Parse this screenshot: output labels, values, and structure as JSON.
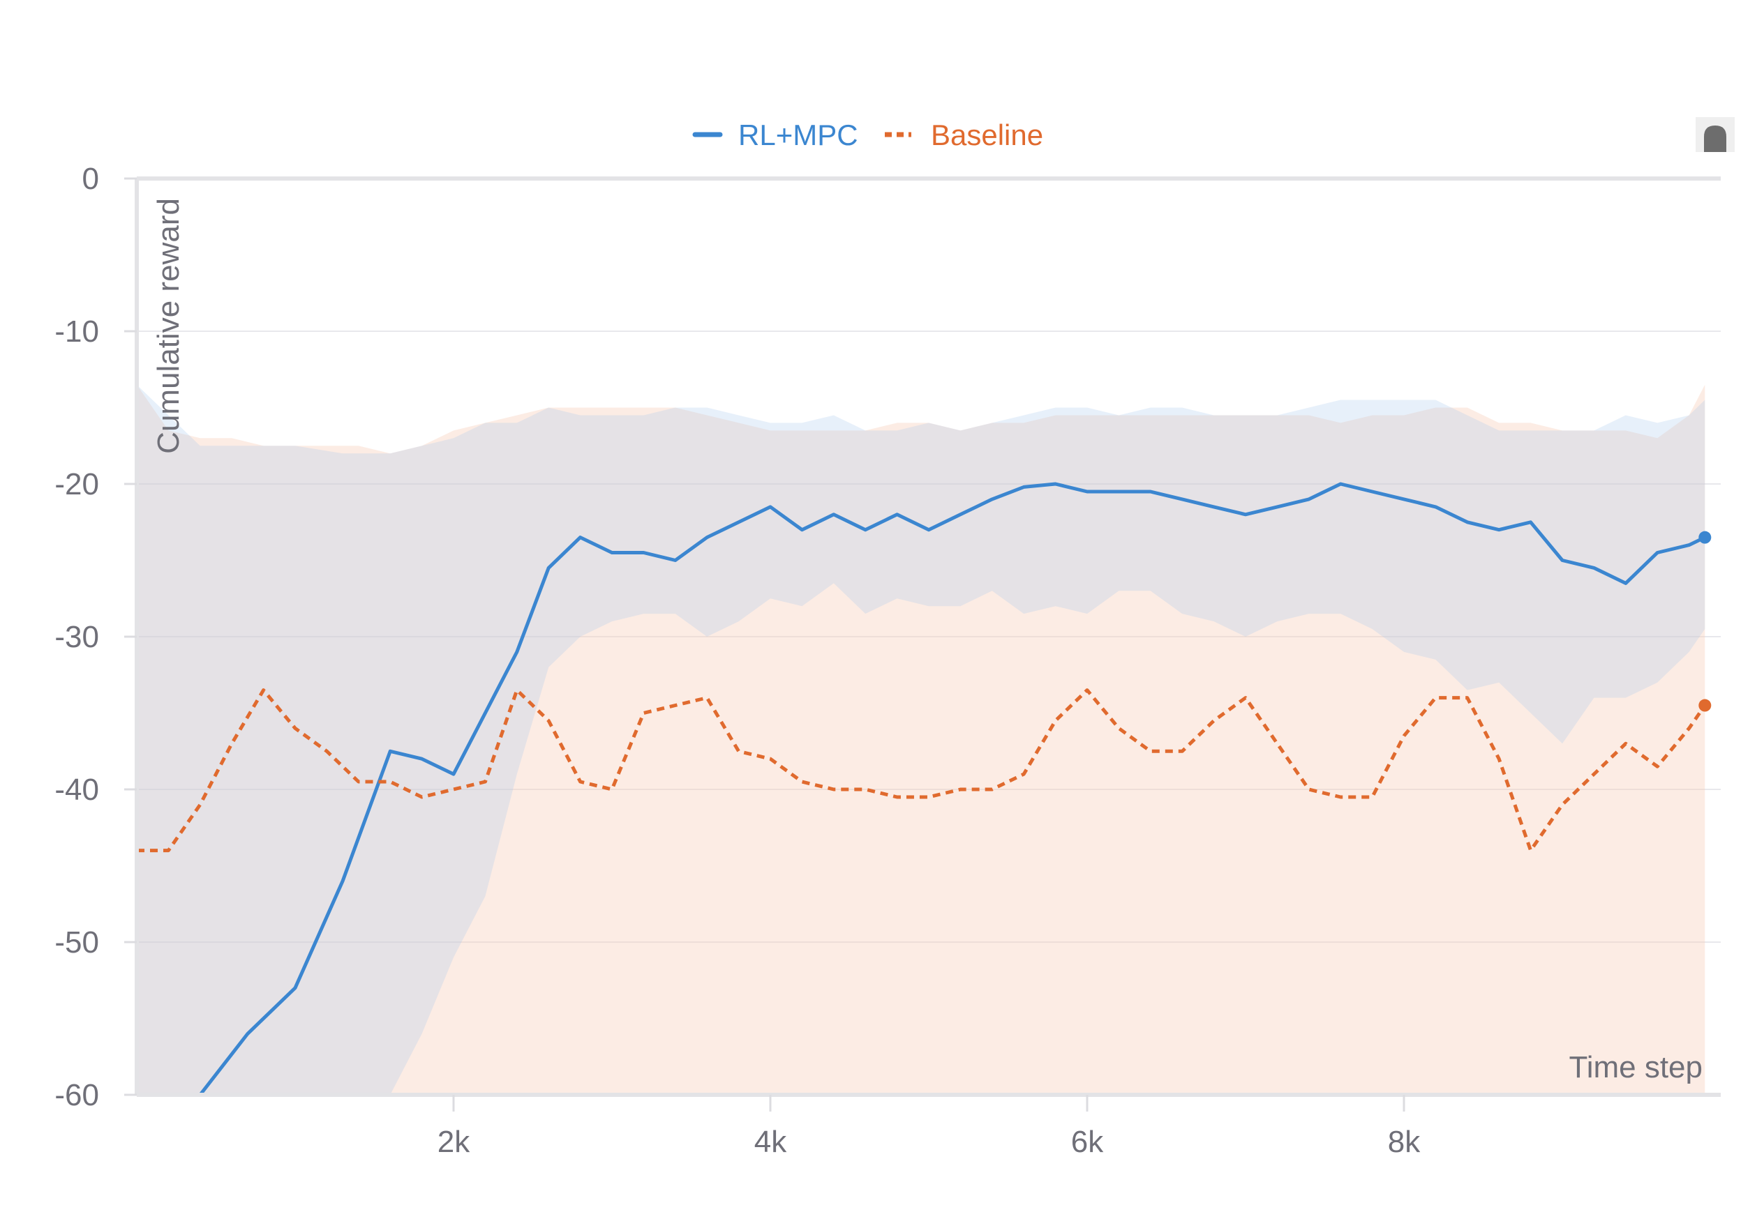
{
  "chart_data": {
    "type": "line",
    "title": "",
    "xlabel": "Time step",
    "ylabel": "Cumulative reward",
    "xlim": [
      0,
      10000
    ],
    "ylim": [
      -60,
      0
    ],
    "x_ticks": [
      2000,
      4000,
      6000,
      8000
    ],
    "x_tick_labels": [
      "2k",
      "4k",
      "6k",
      "8k"
    ],
    "y_ticks": [
      0,
      -10,
      -20,
      -30,
      -40,
      -50,
      -60
    ],
    "y_tick_labels": [
      "0",
      "-10",
      "-20",
      "-30",
      "-40",
      "-50",
      "-60"
    ],
    "grid": true,
    "legend_position": "top-center",
    "series": [
      {
        "name": "RL+MPC",
        "color": "#3b86d0",
        "line_style": "solid",
        "x": [
          0,
          400,
          700,
          1000,
          1300,
          1600,
          1800,
          2000,
          2200,
          2400,
          2600,
          2800,
          3000,
          3200,
          3400,
          3600,
          3800,
          4000,
          4200,
          4400,
          4600,
          4800,
          5000,
          5200,
          5400,
          5600,
          5800,
          6000,
          6200,
          6400,
          6600,
          6800,
          7000,
          7200,
          7400,
          7600,
          7800,
          8000,
          8200,
          8400,
          8600,
          8800,
          9000,
          9200,
          9400,
          9600,
          9800,
          9900
        ],
        "y": [
          -60,
          -60,
          -56,
          -53,
          -46,
          -37.5,
          -38,
          -39,
          -35,
          -31,
          -25.5,
          -23.5,
          -24.5,
          -24.5,
          -25,
          -23.5,
          -22.5,
          -21.5,
          -23,
          -22,
          -23,
          -22,
          -23,
          -22,
          -21,
          -20.2,
          -20,
          -20.5,
          -20.5,
          -20.5,
          -21,
          -21.5,
          -22,
          -21.5,
          -21,
          -20,
          -20.5,
          -21,
          -21.5,
          -22.5,
          -23,
          -22.5,
          -25,
          -25.5,
          -26.5,
          -24.5,
          -24,
          -23.5
        ],
        "band_upper": [
          -13.5,
          -17.5,
          -17.5,
          -17.5,
          -18,
          -18,
          -17.5,
          -17,
          -16,
          -16,
          -15,
          -15.5,
          -15.5,
          -15.5,
          -15,
          -15,
          -15.5,
          -16,
          -16,
          -15.5,
          -16.5,
          -16.5,
          -16,
          -16.5,
          -16,
          -15.5,
          -15,
          -15,
          -15.5,
          -15,
          -15,
          -15.5,
          -15.5,
          -15.5,
          -15,
          -14.5,
          -14.5,
          -14.5,
          -14.5,
          -15.5,
          -16.5,
          -16.5,
          -16.5,
          -16.5,
          -15.5,
          -16,
          -15.5,
          -14.5
        ],
        "band_lower": [
          -60,
          -60,
          -60,
          -60,
          -60,
          -60,
          -56,
          -51,
          -47,
          -39,
          -32,
          -30,
          -29,
          -28.5,
          -28.5,
          -30,
          -29,
          -27.5,
          -28,
          -26.5,
          -28.5,
          -27.5,
          -28,
          -28,
          -27,
          -28.5,
          -28,
          -28.5,
          -27,
          -27,
          -28.5,
          -29,
          -30,
          -29,
          -28.5,
          -28.5,
          -29.5,
          -31,
          -31.5,
          -33.5,
          -33,
          -35,
          -37,
          -34,
          -34,
          -33,
          -31,
          -29.5
        ]
      },
      {
        "name": "Baseline",
        "color": "#e06a2e",
        "line_style": "dashed",
        "x": [
          0,
          200,
          400,
          600,
          800,
          1000,
          1200,
          1400,
          1600,
          1800,
          2000,
          2200,
          2400,
          2600,
          2800,
          3000,
          3200,
          3400,
          3600,
          3800,
          4000,
          4200,
          4400,
          4600,
          4800,
          5000,
          5200,
          5400,
          5600,
          5800,
          6000,
          6200,
          6400,
          6600,
          6800,
          7000,
          7200,
          7400,
          7600,
          7800,
          8000,
          8200,
          8400,
          8600,
          8800,
          9000,
          9200,
          9400,
          9600,
          9800,
          9900
        ],
        "y": [
          -44,
          -44,
          -41,
          -37,
          -33.5,
          -36,
          -37.5,
          -39.5,
          -39.5,
          -40.5,
          -40,
          -39.5,
          -33.5,
          -35.5,
          -39.5,
          -40,
          -35,
          -34.5,
          -34,
          -37.5,
          -38,
          -39.5,
          -40,
          -40,
          -40.5,
          -40.5,
          -40,
          -40,
          -39,
          -35.5,
          -33.5,
          -36,
          -37.5,
          -37.5,
          -35.5,
          -34,
          -37,
          -40,
          -40.5,
          -40.5,
          -36.5,
          -34,
          -34,
          -38,
          -44,
          -41,
          -39,
          -37,
          -38.5,
          -36,
          -34.5
        ],
        "band_upper": [
          -13.5,
          -16.5,
          -17,
          -17,
          -17.5,
          -17.5,
          -17.5,
          -17.5,
          -18,
          -17.5,
          -16.5,
          -16,
          -15.5,
          -15,
          -15,
          -15,
          -15,
          -15,
          -15.5,
          -16,
          -16.5,
          -16.5,
          -16.5,
          -16.5,
          -16,
          -16,
          -16.5,
          -16,
          -16,
          -15.5,
          -15.5,
          -15.5,
          -15.5,
          -15.5,
          -15.5,
          -15.5,
          -15.5,
          -15.5,
          -16,
          -15.5,
          -15.5,
          -15,
          -15,
          -16,
          -16,
          -16.5,
          -16.5,
          -16.5,
          -17,
          -15.5,
          -13.5
        ],
        "band_lower": [
          -60,
          -60,
          -60,
          -60,
          -60,
          -60,
          -60,
          -60,
          -60,
          -60,
          -60,
          -60,
          -60,
          -60,
          -60,
          -60,
          -60,
          -60,
          -60,
          -60,
          -60,
          -60,
          -60,
          -60,
          -60,
          -60,
          -60,
          -60,
          -60,
          -60,
          -60,
          -60,
          -60,
          -60,
          -60,
          -60,
          -60,
          -60,
          -60,
          -60,
          -60,
          -60,
          -60,
          -60,
          -60,
          -60,
          -60,
          -60,
          -60,
          -60,
          -60
        ]
      }
    ]
  },
  "legend": {
    "items": [
      {
        "label": "RL+MPC",
        "color": "#3b86d0"
      },
      {
        "label": "Baseline",
        "color": "#e06a2e"
      }
    ]
  },
  "icons": {
    "corner": "resize-handle-icon"
  }
}
